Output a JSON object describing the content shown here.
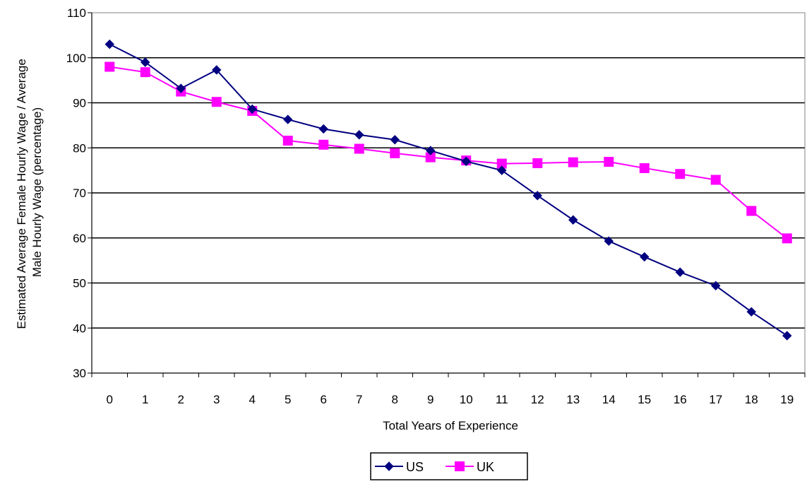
{
  "chart_data": {
    "type": "line",
    "title": "",
    "xlabel": "Total Years of Experience",
    "ylabel_line1": "Estimated Average Female Hourly Wage / Average",
    "ylabel_line2": "Male Hourly Wage (percentage)",
    "categories": [
      0,
      1,
      2,
      3,
      4,
      5,
      6,
      7,
      8,
      9,
      10,
      11,
      12,
      13,
      14,
      15,
      16,
      17,
      18,
      19
    ],
    "y_ticks": [
      30,
      40,
      50,
      60,
      70,
      80,
      90,
      100,
      110
    ],
    "ylim": [
      30,
      110
    ],
    "grid": "horizontal",
    "legend_position": "bottom-center",
    "series": [
      {
        "name": "US",
        "color": "#000080",
        "marker": "diamond",
        "values": [
          103.0,
          99.0,
          93.2,
          97.3,
          88.6,
          86.3,
          84.2,
          82.9,
          81.8,
          79.4,
          77.0,
          75.0,
          69.4,
          64.0,
          59.3,
          55.8,
          52.4,
          49.4,
          43.6,
          38.3
        ]
      },
      {
        "name": "UK",
        "color": "#FF00FF",
        "marker": "square",
        "values": [
          98.0,
          96.8,
          92.5,
          90.2,
          88.2,
          81.6,
          80.7,
          79.8,
          78.8,
          77.9,
          77.2,
          76.5,
          76.6,
          76.8,
          76.9,
          75.5,
          74.2,
          72.9,
          66.0,
          59.9
        ]
      }
    ]
  }
}
